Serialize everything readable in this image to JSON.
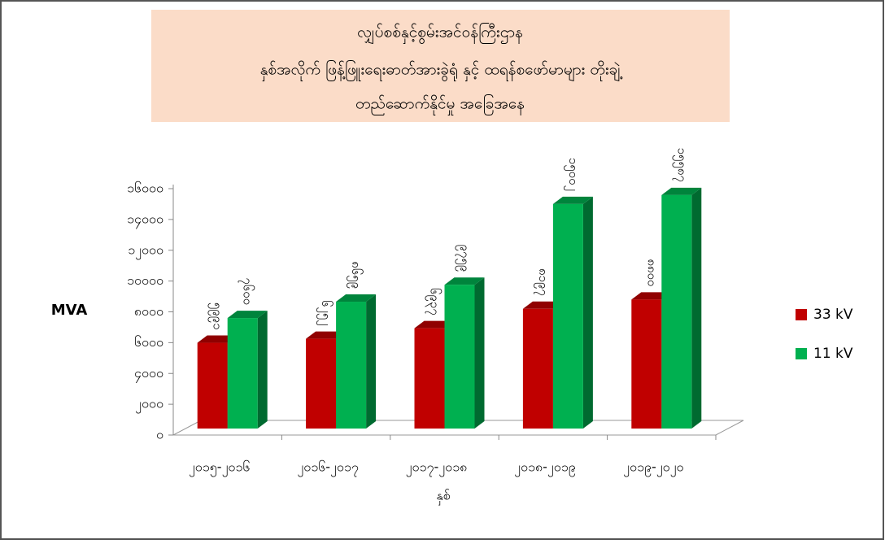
{
  "chart_data": {
    "type": "bar3d",
    "title": [
      "လျှပ်စစ်နှင့်စွမ်းအင်ဝန်ကြီးဌာန",
      "နှစ်အလိုက် ဖြန့်ဖြူးရေးဓာတ်အားခွဲရုံ နှင့် ထရန်စဖော်မာများ တိုးချဲ့",
      "တည်ဆောက်နိုင်မှု အခြေအနေ"
    ],
    "y_label": "MVA",
    "x_label": "နှစ်",
    "categories": [
      "၂၀၁၅-၂၀၁၆",
      "၂၀၁၆-၂၀၁၇",
      "၂၀၁၇-၂၀၁၈",
      "၂၀၁၈-၂၀၁၉",
      "၂၀၁၉-၂၀၂၀"
    ],
    "series": [
      {
        "name": "33 kV",
        "color": "#c00000",
        "values": [
          5991,
          6252,
          6937,
          8197,
          8800
        ],
        "value_labels": [
          "၅၉၉၁",
          "၆၂၅၂",
          "၆၉၃၇",
          "၈၁၉၇",
          "၈၈၀၀"
        ]
      },
      {
        "name": "11 kV",
        "color": "#00b050",
        "values": [
          7600,
          8659,
          9759,
          15002,
          15587
        ],
        "value_labels": [
          "၇၆၀၀",
          "၈၆၅၉",
          "၉၇၅၉",
          "၁၅၀၀၂",
          "၁၅၅၈၇"
        ]
      }
    ],
    "ylim": [
      0,
      16000
    ],
    "yticks": [
      {
        "value": 0,
        "label": "၀"
      },
      {
        "value": 2000,
        "label": "၂၀၀၀"
      },
      {
        "value": 4000,
        "label": "၄၀၀၀"
      },
      {
        "value": 6000,
        "label": "၆၀၀၀"
      },
      {
        "value": 8000,
        "label": "၈၀၀၀"
      },
      {
        "value": 10000,
        "label": "၁၀၀၀၀"
      },
      {
        "value": 12000,
        "label": "၁၂၀၀၀"
      },
      {
        "value": 14000,
        "label": "၁၄၀၀၀"
      },
      {
        "value": 16000,
        "label": "၁၆၀၀၀"
      }
    ],
    "legend": "right"
  }
}
